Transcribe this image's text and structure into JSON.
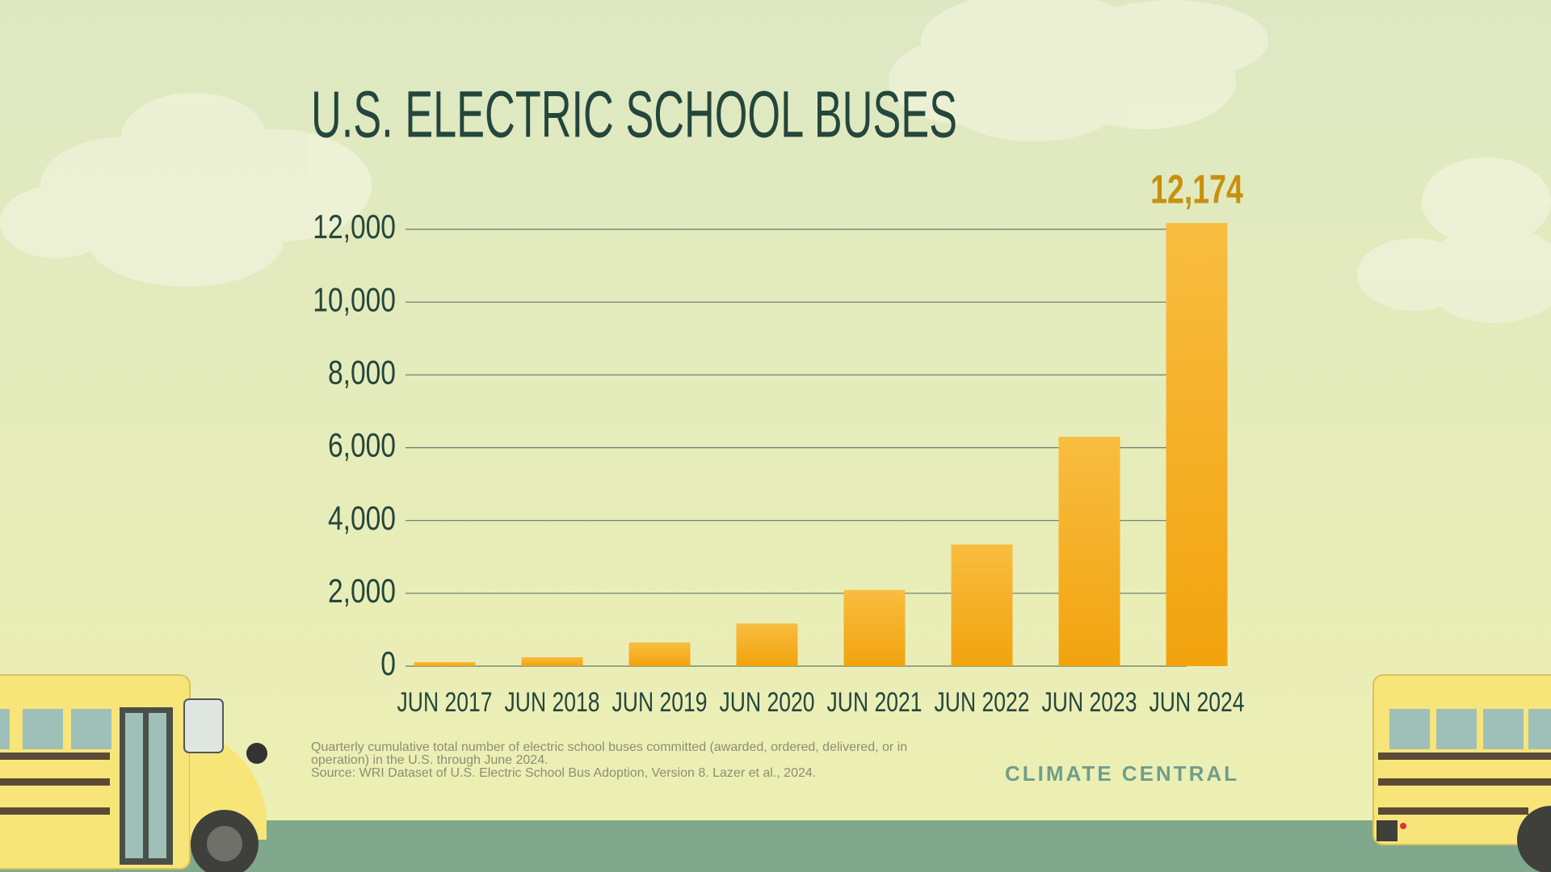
{
  "chart_data": {
    "type": "bar",
    "title": "U.S. ELECTRIC SCHOOL BUSES",
    "categories": [
      "JUN 2017",
      "JUN 2018",
      "JUN 2019",
      "JUN 2020",
      "JUN 2021",
      "JUN 2022",
      "JUN 2023",
      "JUN 2024"
    ],
    "values": [
      110,
      245,
      650,
      1170,
      2090,
      3340,
      6300,
      12174
    ],
    "value_labels": [
      null,
      null,
      null,
      null,
      null,
      null,
      null,
      "12,174"
    ],
    "color": "#f4ab1a",
    "ylim": [
      0,
      12000
    ],
    "yticks": [
      0,
      {
        "value": 2000,
        "label": "2,000"
      },
      {
        "value": 4000,
        "label": "4,000"
      },
      {
        "value": 6000,
        "label": "6,000"
      },
      {
        "value": 8000,
        "label": "8,000"
      },
      {
        "value": 10000,
        "label": "10,000"
      },
      {
        "value": 12000,
        "label": "12,000"
      }
    ],
    "grid": true,
    "note": "Quarterly cumulative total number of electric school buses committed (awarded, ordered, delivered, or in operation) in the U.S. through June 2024.",
    "source": "Source: WRI Dataset of U.S. Electric School Bus Adoption, Version 8. Lazer et al., 2024.",
    "brand": "CLIMATE CENTRAL"
  }
}
